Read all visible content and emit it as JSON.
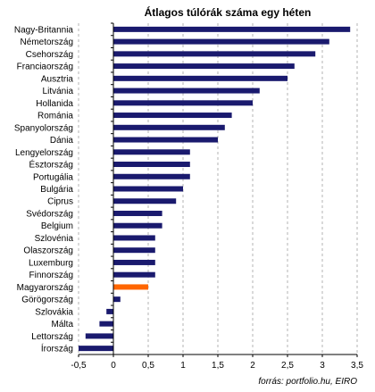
{
  "chart_data": {
    "type": "bar",
    "orientation": "horizontal",
    "title": "Átlagos túlórák száma egy héten",
    "source": "forrás: portfolio.hu, EIRO",
    "categories": [
      "Nagy-Britannia",
      "Németország",
      "Csehország",
      "Franciaország",
      "Ausztria",
      "Litvánia",
      "Hollanida",
      "Románia",
      "Spanyolország",
      "Dánia",
      "Lengyelország",
      "Észtország",
      "Portugália",
      "Bulgária",
      "Ciprus",
      "Svédország",
      "Belgium",
      "Szlovénia",
      "Olaszország",
      "Luxemburg",
      "Finnország",
      "Magyarország",
      "Görögország",
      "Szlovákia",
      "Málta",
      "Lettország",
      "Írország"
    ],
    "values": [
      3.4,
      3.1,
      2.9,
      2.6,
      2.5,
      2.1,
      2.0,
      1.7,
      1.6,
      1.5,
      1.1,
      1.1,
      1.1,
      1.0,
      0.9,
      0.7,
      0.7,
      0.6,
      0.6,
      0.6,
      0.6,
      0.5,
      0.1,
      -0.1,
      -0.2,
      -0.4,
      -0.5
    ],
    "highlight": "Magyarország",
    "colors": {
      "default": "#1a1a6e",
      "highlight": "#ff6600",
      "grid": "#b3b3b3"
    },
    "xlim": [
      -0.5,
      3.5
    ],
    "xticks": [
      -0.5,
      0,
      0.5,
      1,
      1.5,
      2,
      2.5,
      3,
      3.5
    ],
    "xtick_labels": [
      "-0,5",
      "0",
      "0,5",
      "1",
      "1,5",
      "2",
      "2,5",
      "3",
      "3,5"
    ],
    "grid": true,
    "grid_style": "dashed-vertical",
    "xlabel": "",
    "ylabel": ""
  }
}
